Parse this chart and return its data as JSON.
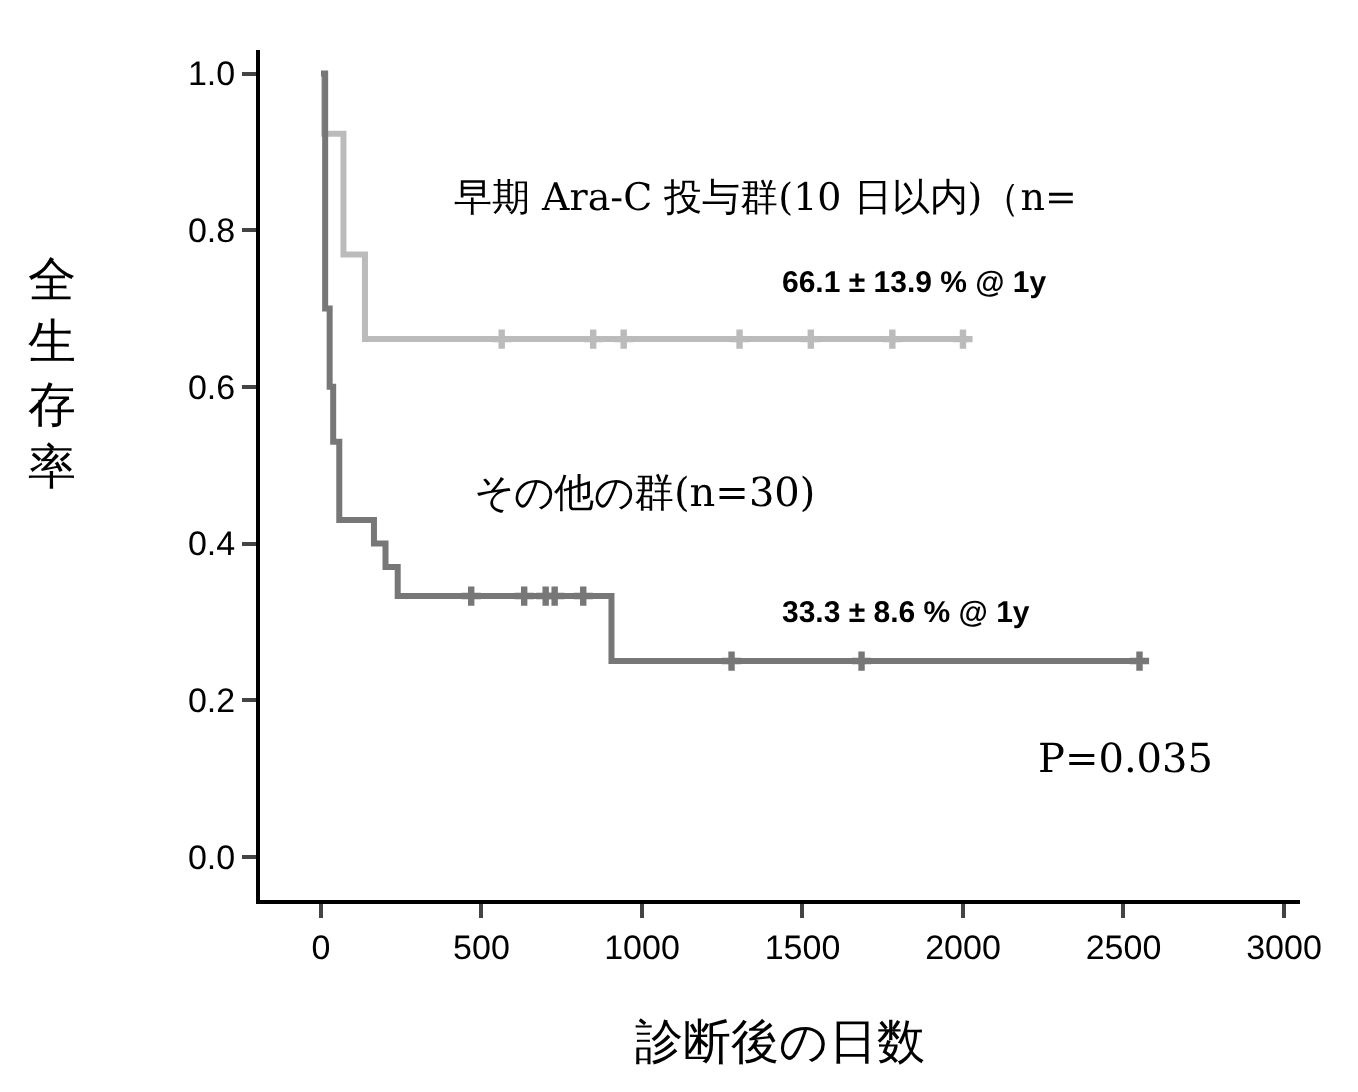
{
  "chart_data": {
    "type": "step",
    "xlabel": "診断後の日数",
    "ylabel": "全生存率",
    "xlim": [
      -190,
      3050
    ],
    "xticks": [
      0,
      500,
      1000,
      1500,
      2000,
      2500,
      3000
    ],
    "ylim": [
      -0.055,
      1.03
    ],
    "yticks": [
      {
        "value": 0,
        "label": "0.0"
      },
      {
        "value": 0.2,
        "label": "0.2"
      },
      {
        "value": 0.4,
        "label": "0.4"
      },
      {
        "value": 0.6,
        "label": "0.6"
      },
      {
        "value": 0.8,
        "label": "0.8"
      },
      {
        "value": 1,
        "label": "1.0"
      }
    ],
    "marker": "none",
    "line_style": "solid",
    "series": [
      {
        "color": "#bbbbbb",
        "x": [
          10,
          10,
          70,
          137,
          2000
        ],
        "values": [
          1.0,
          0.923,
          0.769,
          0.661,
          0.661
        ]
      },
      {
        "color": "#777777",
        "x": [
          0,
          13,
          27,
          38,
          57,
          165,
          201,
          239,
          905,
          2550
        ],
        "values": [
          1.0,
          0.7,
          0.6,
          0.53,
          0.43,
          0.4,
          0.37,
          0.333,
          0.25,
          0.25
        ]
      },
      {
        "type": "scatter",
        "marker": "cross",
        "color": "#bbbbbb",
        "x": [
          563,
          848,
          943,
          1304,
          1526,
          1780,
          2000
        ],
        "values": [
          0.661,
          0.661,
          0.661,
          0.661,
          0.661,
          0.661,
          0.661
        ]
      },
      {
        "type": "scatter",
        "marker": "cross",
        "color": "#777777",
        "x": [
          468,
          633,
          700,
          728,
          817,
          1279,
          1684,
          2550
        ],
        "values": [
          0.333,
          0.333,
          0.333,
          0.333,
          0.333,
          0.25,
          0.25,
          0.25
        ]
      }
    ],
    "annotations": [
      "早期 Ara-C 投与群(10 日以内)（n=",
      "66.1 ± 13.9 % @ 1y",
      "その他の群(n=30)",
      "33.3 ± 8.6 % @ 1y",
      "P=0.035"
    ]
  }
}
